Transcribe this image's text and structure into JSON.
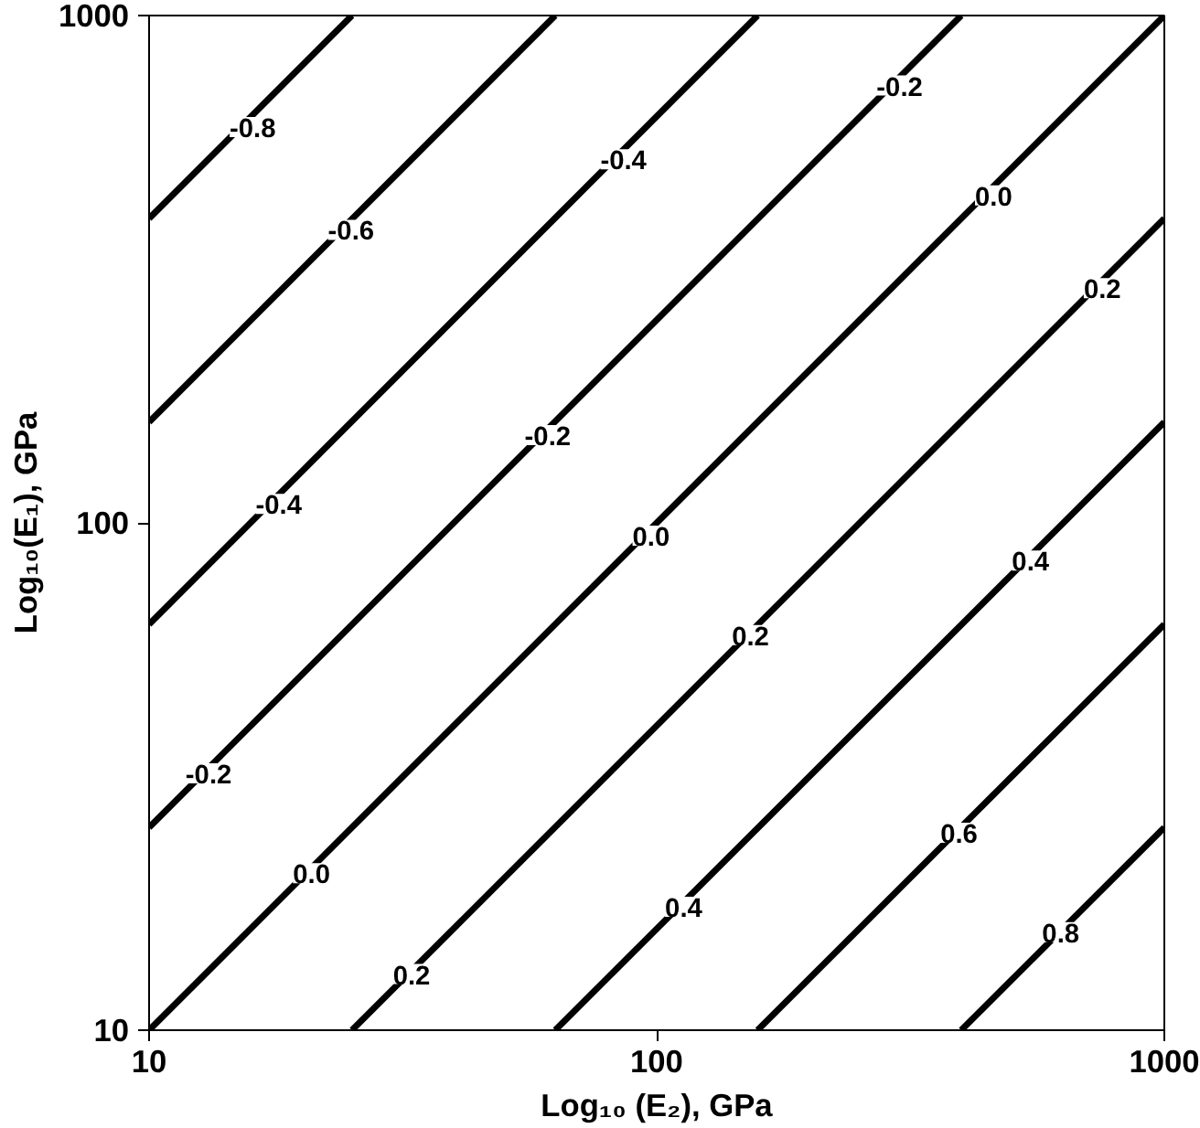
{
  "chart_data": {
    "type": "line",
    "xlabel": "Log₁₀ (E₂), GPa",
    "ylabel": "Log₁₀(E₁), GPa",
    "log": "xy",
    "xlim": [
      10,
      1000
    ],
    "ylim": [
      10,
      1000
    ],
    "xticks": [
      10,
      100,
      1000
    ],
    "yticks": [
      10,
      100,
      1000
    ],
    "grid": false,
    "marker": "none",
    "line_style": "solid",
    "series": [
      {
        "color": "#000000",
        "x": [
          10,
          25.1
        ],
        "values": [
          398,
          1000
        ]
      },
      {
        "color": "#000000",
        "x": [
          10,
          63.1
        ],
        "values": [
          158,
          1000
        ]
      },
      {
        "color": "#000000",
        "x": [
          10,
          158
        ],
        "values": [
          63.1,
          1000
        ]
      },
      {
        "color": "#000000",
        "x": [
          10,
          398
        ],
        "values": [
          25.1,
          1000
        ]
      },
      {
        "color": "#000000",
        "x": [
          10,
          1000
        ],
        "values": [
          10,
          1000
        ]
      },
      {
        "color": "#000000",
        "x": [
          25.1,
          1000
        ],
        "values": [
          10,
          398
        ]
      },
      {
        "color": "#000000",
        "x": [
          63.1,
          1000
        ],
        "values": [
          10,
          158
        ]
      },
      {
        "color": "#000000",
        "x": [
          158,
          1000
        ],
        "values": [
          10,
          63.1
        ]
      },
      {
        "color": "#000000",
        "x": [
          398,
          1000
        ],
        "values": [
          10,
          25.1
        ]
      }
    ],
    "annotations": [
      {
        "text": "-0.8",
        "x": 16,
        "y": 603
      },
      {
        "text": "-0.6",
        "x": 25,
        "y": 378
      },
      {
        "text": "-0.4",
        "x": 86,
        "y": 521
      },
      {
        "text": "-0.2",
        "x": 301,
        "y": 728
      },
      {
        "text": "0.0",
        "x": 461,
        "y": 442
      },
      {
        "text": "0.2",
        "x": 755,
        "y": 290
      },
      {
        "text": "-0.2",
        "x": 61,
        "y": 149
      },
      {
        "text": "-0.4",
        "x": 18,
        "y": 109
      },
      {
        "text": "0.0",
        "x": 97.5,
        "y": 94.4
      },
      {
        "text": "0.4",
        "x": 545,
        "y": 84.3
      },
      {
        "text": "0.2",
        "x": 153,
        "y": 60.1
      },
      {
        "text": "-0.2",
        "x": 13.1,
        "y": 32.1
      },
      {
        "text": "0.0",
        "x": 20.9,
        "y": 20.4
      },
      {
        "text": "0.6",
        "x": 394,
        "y": 24.5
      },
      {
        "text": "0.4",
        "x": 113,
        "y": 17.5
      },
      {
        "text": "0.8",
        "x": 625,
        "y": 15.6
      },
      {
        "text": "0.2",
        "x": 32.9,
        "y": 12.9
      }
    ]
  }
}
